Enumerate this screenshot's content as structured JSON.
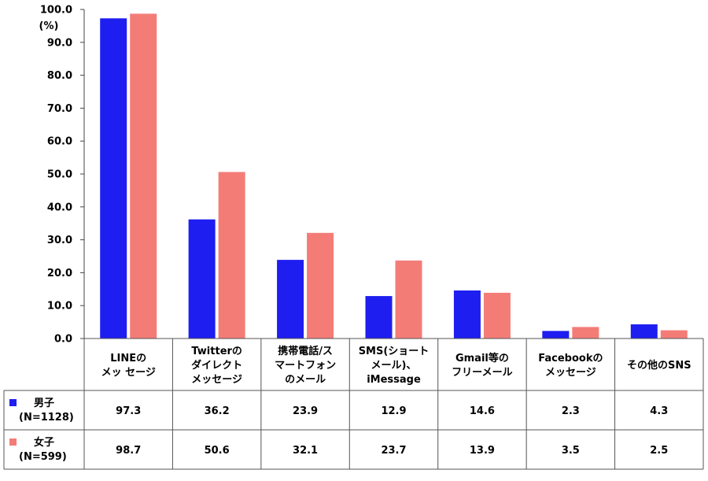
{
  "chart_data": {
    "type": "bar",
    "ylabel": "(%)",
    "ylim": [
      0,
      100
    ],
    "ytick_labels": [
      "0.0",
      "10.0",
      "20.0",
      "30.0",
      "40.0",
      "50.0",
      "60.0",
      "70.0",
      "80.0",
      "90.0",
      "100.0"
    ],
    "categories": [
      [
        "LINEの",
        "メッ セージ"
      ],
      [
        "Twitterの",
        "ダイレクト",
        "メッセージ"
      ],
      [
        "携帯電話/ス",
        "マートフォン",
        "のメール"
      ],
      [
        "SMS(ショート",
        "メール)、",
        "iMessage"
      ],
      [
        "Gmail等の",
        "フリーメール"
      ],
      [
        "Facebookの",
        "メッセージ"
      ],
      [
        "その他のSNS"
      ]
    ],
    "series": [
      {
        "name": "男子",
        "sample": "(N=1128)",
        "color": "#1e1ef0",
        "values": [
          97.3,
          36.2,
          23.9,
          12.9,
          14.6,
          2.3,
          4.3
        ],
        "labels": [
          "97.3",
          "36.2",
          "23.9",
          "12.9",
          "14.6",
          "2.3",
          "4.3"
        ]
      },
      {
        "name": "女子",
        "sample": "(N=599)",
        "color": "#f47c77",
        "values": [
          98.7,
          50.6,
          32.1,
          23.7,
          13.9,
          3.5,
          2.5
        ],
        "labels": [
          "98.7",
          "50.6",
          "32.1",
          "23.7",
          "13.9",
          "3.5",
          "2.5"
        ]
      }
    ],
    "legend": "data-table"
  }
}
